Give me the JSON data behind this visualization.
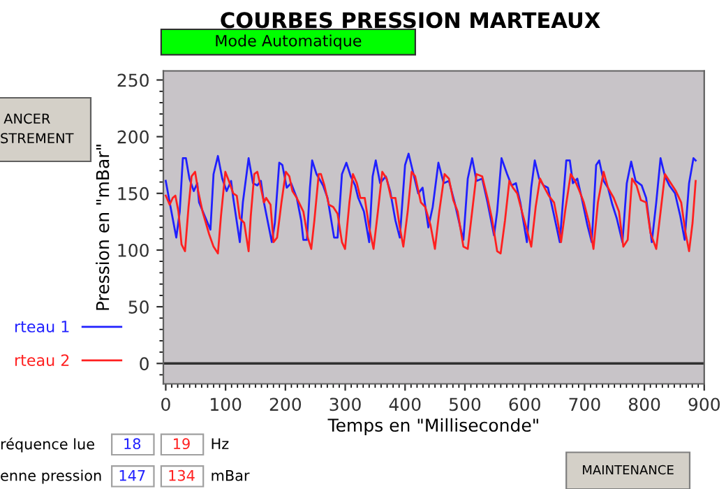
{
  "chart_data": {
    "type": "line",
    "title": "COURBES PRESSION MARTEAUX",
    "xlabel": "Temps en \"Milliseconde\"",
    "ylabel": "Pression en \"mBar\"",
    "xlim": [
      -4,
      900
    ],
    "xticks": [
      0,
      100,
      200,
      300,
      400,
      500,
      600,
      700,
      800,
      900
    ],
    "ylim": [
      -18,
      258
    ],
    "yticks": [
      0,
      50,
      100,
      150,
      200,
      250
    ],
    "grid": false,
    "legend": "left",
    "marker": "none",
    "line_style": "solid",
    "ref_lines": [
      {
        "axis": "y",
        "value": 0,
        "color": "#303030"
      }
    ],
    "annotations": [
      "Mode Automatique",
      "ANCER",
      "STREMENT",
      "réquence lue",
      "18",
      "19",
      "Hz",
      "enne pression",
      "147",
      "134",
      "mBar",
      "MAINTENANCE"
    ],
    "series": [
      {
        "name": "rteau 1",
        "color": "#2020ff",
        "x": [
          0,
          6.6,
          17.6,
          23.4,
          28.6,
          33.7,
          39.6,
          46.9,
          52.7,
          55.7,
          65.2,
          74.7,
          79.9,
          87.2,
          94.5,
          101.8,
          109.2,
          112.8,
          123.8,
          128.9,
          138.5,
          145.8,
          153.1,
          159,
          164.1,
          177.3,
          182.4,
          189.7,
          194.9,
          202.2,
          209.5,
          219,
          226.4,
          230,
          235.9,
          241,
          244.7,
          252,
          263,
          270.4,
          281.4,
          287.2,
          294.5,
          301.9,
          309.2,
          316.5,
          321.7,
          331.2,
          340,
          345.8,
          351,
          358.3,
          367.8,
          375.1,
          383.9,
          391.2,
          400,
          405.9,
          413.2,
          422,
          429.3,
          438.9,
          446.2,
          455.7,
          464.5,
          473.3,
          482.8,
          492.3,
          497.5,
          504.8,
          512.1,
          519.4,
          528.9,
          537.8,
          548.7,
          553.9,
          561.2,
          570.6,
          578,
          585.3,
          592.6,
          603.6,
          610.9,
          616.8,
          624.1,
          631.4,
          638.8,
          647.6,
          658.6,
          663.7,
          669.5,
          675.4,
          680.5,
          687.9,
          695.2,
          704.7,
          712,
          719.4,
          724.5,
          731.8,
          739.1,
          746.5,
          753.8,
          763.3,
          770.6,
          777.9,
          785.3,
          795.5,
          802.9,
          812.4,
          819.8,
          827,
          834.4,
          841.7,
          851.2,
          860,
          867.3,
          874.7,
          882,
          885.7
        ],
        "values": [
          161,
          142,
          111,
          134,
          181,
          181,
          163,
          152,
          159,
          142,
          130,
          118,
          167,
          183,
          163,
          152,
          161,
          146,
          107,
          142,
          181,
          159,
          157,
          161,
          142,
          107,
          124,
          177,
          175,
          155,
          159,
          146,
          126,
          109,
          109,
          155,
          179,
          167,
          157,
          146,
          111,
          111,
          167,
          177,
          165,
          157,
          146,
          134,
          107,
          165,
          179,
          159,
          165,
          152,
          126,
          111,
          175,
          185,
          169,
          150,
          155,
          120,
          138,
          177,
          159,
          161,
          142,
          120,
          109,
          163,
          181,
          161,
          163,
          142,
          113,
          134,
          181,
          167,
          157,
          159,
          142,
          107,
          155,
          179,
          163,
          157,
          155,
          134,
          107,
          142,
          179,
          179,
          159,
          163,
          146,
          122,
          107,
          175,
          179,
          161,
          155,
          140,
          128,
          107,
          159,
          178,
          161,
          157,
          146,
          107,
          142,
          181,
          165,
          157,
          150,
          130,
          109,
          159,
          181,
          179
        ]
      },
      {
        "name": "rteau 2",
        "color": "#ff2020",
        "x": [
          0,
          6.6,
          11.7,
          16.1,
          21.2,
          26.4,
          32.2,
          38.1,
          43.2,
          49.1,
          54.2,
          61.5,
          72.5,
          79.9,
          87.2,
          92.3,
          99.6,
          105.5,
          112.8,
          118.7,
          123.8,
          131.1,
          138.5,
          142.1,
          148,
          153.1,
          158.2,
          164.1,
          167.8,
          175.1,
          180.2,
          186.1,
          193.4,
          200.7,
          206.6,
          211.7,
          219,
          230,
          237.4,
          243.2,
          248.4,
          255.7,
          259.4,
          265.2,
          272.6,
          279.9,
          287.2,
          294.5,
          299.7,
          307,
          312.9,
          319.5,
          325.3,
          332.6,
          340,
          347.3,
          354.6,
          361.9,
          369.3,
          376.6,
          383.9,
          391.2,
          397.1,
          404.4,
          411,
          416.9,
          426.4,
          433.7,
          442.5,
          449.9,
          457.2,
          466,
          473.3,
          480.6,
          487.9,
          497.5,
          504.8,
          512.1,
          519.4,
          528.9,
          537.8,
          545.1,
          553.9,
          559.7,
          567,
          574.3,
          580.2,
          587.5,
          596.3,
          603.6,
          610.9,
          618.3,
          625.6,
          633,
          640.2,
          649,
          654.9,
          660.7,
          668,
          676.9,
          684.2,
          691.5,
          698.8,
          707.6,
          714.9,
          722.3,
          731.8,
          739.1,
          748.7,
          757.5,
          764.8,
          772.1,
          779.4,
          786.8,
          794.1,
          802.9,
          810.2,
          819.8,
          827.1,
          834.4,
          841.7,
          852.7,
          861.5,
          868.8,
          874.7,
          880.5,
          885.7
        ],
        "values": [
          148,
          140,
          146,
          148,
          134,
          105,
          99,
          138,
          165,
          169,
          152,
          134,
          114,
          103,
          97,
          130,
          169,
          161,
          150,
          148,
          128,
          124,
          99,
          130,
          167,
          169,
          157,
          142,
          146,
          140,
          107,
          111,
          142,
          169,
          165,
          152,
          146,
          134,
          111,
          101,
          126,
          167,
          167,
          157,
          140,
          138,
          132,
          107,
          101,
          142,
          167,
          159,
          146,
          146,
          120,
          101,
          134,
          169,
          163,
          146,
          146,
          120,
          103,
          134,
          169,
          165,
          142,
          138,
          122,
          101,
          134,
          167,
          163,
          144,
          134,
          103,
          101,
          134,
          167,
          165,
          146,
          128,
          99,
          97,
          126,
          161,
          155,
          150,
          132,
          118,
          103,
          138,
          163,
          155,
          148,
          142,
          126,
          107,
          136,
          167,
          161,
          152,
          142,
          124,
          101,
          142,
          169,
          155,
          146,
          134,
          103,
          109,
          163,
          157,
          144,
          142,
          115,
          101,
          134,
          167,
          161,
          152,
          142,
          115,
          99,
          124,
          161
        ]
      }
    ]
  }
}
